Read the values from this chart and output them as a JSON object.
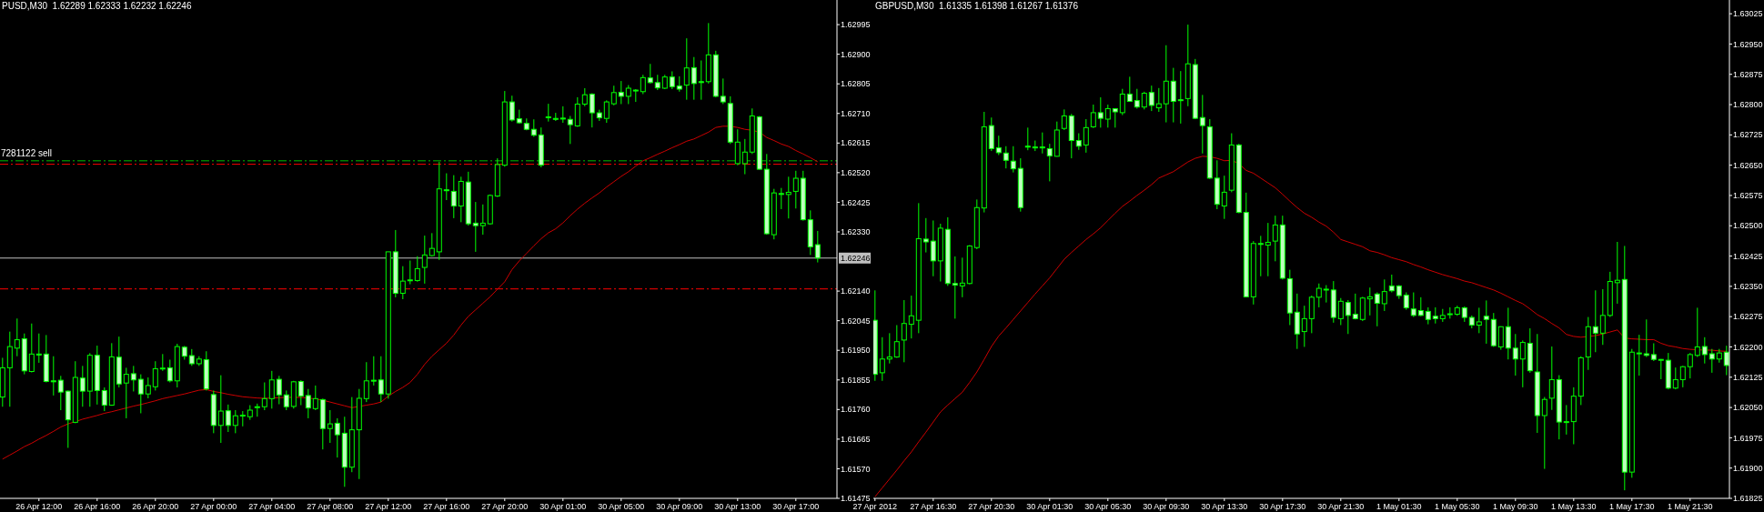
{
  "chart_data": [
    {
      "type": "candlestick",
      "title": "PUSD,M30  1.62289 1.62333 1.62232 1.62246",
      "color": "#00ff00",
      "grid": false,
      "ylim": [
        1.61475,
        1.63074
      ],
      "yticks": [
        1.62995,
        {
          "value": 1.629,
          "label": "1.62900"
        },
        1.62805,
        {
          "value": 1.6271,
          "label": "1.62710"
        },
        1.62615,
        {
          "value": 1.6252,
          "label": "1.62520"
        },
        1.62425,
        {
          "value": 1.6233,
          "label": "1.62330"
        },
        {
          "value": 1.6214,
          "label": "1.62140"
        },
        1.62045,
        {
          "value": 1.6195,
          "label": "1.61950"
        },
        1.61855,
        {
          "value": 1.6176,
          "label": "1.61760"
        },
        1.61665,
        {
          "value": 1.6157,
          "label": "1.61570"
        },
        1.61475
      ],
      "ref_lines": [
        {
          "axis": "y",
          "value": 1.62558,
          "label": "7281122 sell",
          "color": "#00c000",
          "line_style": "dashed"
        },
        {
          "axis": "y",
          "value": 1.62547,
          "color": "#ff0000",
          "line_style": "dashed"
        },
        {
          "axis": "y",
          "value": 1.62246,
          "label": "1.62246",
          "color": "#c0c0c0",
          "line_style": "solid"
        },
        {
          "axis": "y",
          "value": 1.62147,
          "color": "#ff0000",
          "line_style": "dashed"
        }
      ],
      "categories": [
        null,
        null,
        null,
        null,
        null,
        "26 Apr 12:00",
        null,
        null,
        null,
        null,
        null,
        null,
        null,
        "26 Apr 16:00",
        null,
        null,
        null,
        null,
        null,
        null,
        null,
        "26 Apr 20:00",
        null,
        null,
        null,
        null,
        null,
        null,
        null,
        "27 Apr 00:00",
        null,
        null,
        null,
        null,
        null,
        null,
        null,
        "27 Apr 04:00",
        null,
        null,
        null,
        null,
        null,
        null,
        null,
        "27 Apr 08:00",
        null,
        null,
        null,
        null,
        null,
        null,
        null,
        "27 Apr 12:00",
        null,
        null,
        null,
        null,
        null,
        null,
        null,
        "27 Apr 16:00",
        null,
        null,
        null,
        null,
        null,
        null,
        null,
        "27 Apr 20:00",
        null,
        null,
        null,
        null,
        null,
        null,
        null,
        "30 Apr 01:00",
        null,
        null,
        null,
        null,
        null,
        null,
        null,
        "30 Apr 05:00",
        null,
        null,
        null,
        null,
        null,
        null,
        null,
        "30 Apr 09:00",
        null,
        null,
        null,
        null,
        null,
        null,
        null,
        "30 Apr 13:00",
        null,
        null,
        null,
        null,
        null,
        null,
        null,
        "30 Apr 17:00",
        null,
        null,
        null
      ],
      "ohlc": [
        [
          1.618,
          1.61926,
          1.61769,
          1.61894
        ],
        [
          1.61894,
          1.6201,
          1.61769,
          1.61962
        ],
        [
          1.61957,
          1.62052,
          1.61931,
          1.61984
        ],
        [
          1.61987,
          1.62004,
          1.61873,
          1.61884
        ],
        [
          1.61882,
          1.62036,
          1.61879,
          1.61938
        ],
        [
          1.61938,
          1.62004,
          1.6191,
          1.61936
        ],
        [
          1.61938,
          1.61999,
          1.61847,
          1.6185
        ],
        [
          1.61852,
          1.61931,
          1.61805,
          1.61849
        ],
        [
          1.61854,
          1.61868,
          1.61758,
          1.61816
        ],
        [
          1.61819,
          1.61821,
          1.61637,
          1.61727
        ],
        [
          1.61719,
          1.61915,
          1.61716,
          1.61863
        ],
        [
          1.61861,
          1.619,
          1.61769,
          1.61819
        ],
        [
          1.61819,
          1.61941,
          1.61769,
          1.61934
        ],
        [
          1.61934,
          1.61965,
          1.61776,
          1.61821
        ],
        [
          1.61821,
          1.61831,
          1.61755,
          1.61774
        ],
        [
          1.61774,
          1.61973,
          1.61772,
          1.61929
        ],
        [
          1.61928,
          1.61994,
          1.61831,
          1.61842
        ],
        [
          1.61845,
          1.61894,
          1.61732,
          1.61873
        ],
        [
          1.61875,
          1.619,
          1.61818,
          1.61855
        ],
        [
          1.61857,
          1.61873,
          1.61748,
          1.6181
        ],
        [
          1.6181,
          1.61863,
          1.61796,
          1.61837
        ],
        [
          1.61833,
          1.61915,
          1.61821,
          1.61891
        ],
        [
          1.61891,
          1.61938,
          1.61884,
          1.61893
        ],
        [
          1.61894,
          1.6192,
          1.61847,
          1.61852
        ],
        [
          1.61852,
          1.61971,
          1.61831,
          1.61962
        ],
        [
          1.6196,
          1.61964,
          1.6192,
          1.61931
        ],
        [
          1.61933,
          1.61954,
          1.619,
          1.61907
        ],
        [
          1.61907,
          1.61931,
          1.619,
          1.61922
        ],
        [
          1.6192,
          1.61947,
          1.61821,
          1.61826
        ],
        [
          1.61808,
          1.61821,
          1.61684,
          1.61709
        ],
        [
          1.61709,
          1.6187,
          1.61653,
          1.61755
        ],
        [
          1.61756,
          1.61776,
          1.61688,
          1.61709
        ],
        [
          1.61709,
          1.61758,
          1.61684,
          1.6174
        ],
        [
          1.6174,
          1.61755,
          1.61706,
          1.61742
        ],
        [
          1.61737,
          1.61774,
          1.61727,
          1.61758
        ],
        [
          1.61766,
          1.61779,
          1.61737,
          1.61769
        ],
        [
          1.61769,
          1.61847,
          1.61758,
          1.61795
        ],
        [
          1.61795,
          1.61884,
          1.61763,
          1.61855
        ],
        [
          1.61857,
          1.61868,
          1.61777,
          1.61807
        ],
        [
          1.61807,
          1.61821,
          1.61758,
          1.61769
        ],
        [
          1.6177,
          1.61852,
          1.61763,
          1.61849
        ],
        [
          1.6185,
          1.61854,
          1.61774,
          1.61803
        ],
        [
          1.61805,
          1.61826,
          1.61732,
          1.61765
        ],
        [
          1.61763,
          1.61837,
          1.61758,
          1.61795
        ],
        [
          1.61792,
          1.61795,
          1.61632,
          1.61699
        ],
        [
          1.61699,
          1.61758,
          1.61653,
          1.61714
        ],
        [
          1.61716,
          1.61732,
          1.61606,
          1.61679
        ],
        [
          1.61684,
          1.61737,
          1.61512,
          1.61575
        ],
        [
          1.61575,
          1.618,
          1.61559,
          1.61695
        ],
        [
          1.61695,
          1.61826,
          1.61537,
          1.61796
        ],
        [
          1.61795,
          1.61912,
          1.61784,
          1.61852
        ],
        [
          1.61854,
          1.61931,
          1.61837,
          1.61852
        ],
        [
          1.61855,
          1.61931,
          1.61784,
          1.6181
        ],
        [
          1.6181,
          1.62266,
          1.61795,
          1.62266
        ],
        [
          1.62266,
          1.62336,
          1.6212,
          1.62133
        ],
        [
          1.62133,
          1.6222,
          1.62114,
          1.62172
        ],
        [
          1.62174,
          1.62238,
          1.62162,
          1.62176
        ],
        [
          1.62174,
          1.62252,
          1.6217,
          1.62212
        ],
        [
          1.62216,
          1.62318,
          1.62164,
          1.62256
        ],
        [
          1.62254,
          1.62326,
          1.62251,
          1.62277
        ],
        [
          1.62266,
          1.62555,
          1.6224,
          1.62468
        ],
        [
          1.62465,
          1.62518,
          1.62432,
          1.62463
        ],
        [
          1.6246,
          1.62512,
          1.62374,
          1.62413
        ],
        [
          1.62413,
          1.62507,
          1.62361,
          1.62492
        ],
        [
          1.6249,
          1.62523,
          1.6235,
          1.62356
        ],
        [
          1.62358,
          1.62426,
          1.62266,
          1.6235
        ],
        [
          1.6235,
          1.62418,
          1.62321,
          1.62358
        ],
        [
          1.62356,
          1.6245,
          1.62353,
          1.62447
        ],
        [
          1.62445,
          1.62566,
          1.62442,
          1.62546
        ],
        [
          1.62544,
          1.62782,
          1.62539,
          1.62747
        ],
        [
          1.62747,
          1.62767,
          1.62684,
          1.62689
        ],
        [
          1.62693,
          1.62722,
          1.62677,
          1.6268
        ],
        [
          1.62678,
          1.62694,
          1.62656,
          1.62659
        ],
        [
          1.62659,
          1.62691,
          1.62635,
          1.6264
        ],
        [
          1.62641,
          1.62665,
          1.62537,
          1.62544
        ],
        [
          1.62699,
          1.62741,
          1.62684,
          1.62697
        ],
        [
          1.62694,
          1.62712,
          1.62686,
          1.62692
        ],
        [
          1.62695,
          1.62733,
          1.6268,
          1.62693
        ],
        [
          1.62691,
          1.62702,
          1.62612,
          1.62674
        ],
        [
          1.6267,
          1.62762,
          1.62667,
          1.6274
        ],
        [
          1.6274,
          1.62791,
          1.62733,
          1.6277
        ],
        [
          1.62772,
          1.62775,
          1.62665,
          1.62712
        ],
        [
          1.62712,
          1.62722,
          1.62686,
          1.62696
        ],
        [
          1.62694,
          1.62752,
          1.6268,
          1.62747
        ],
        [
          1.62741,
          1.62799,
          1.62736,
          1.62777
        ],
        [
          1.62778,
          1.62814,
          1.6274,
          1.62765
        ],
        [
          1.62765,
          1.62801,
          1.6274,
          1.62791
        ],
        [
          1.62785,
          1.62788,
          1.62747,
          1.62783
        ],
        [
          1.6278,
          1.62834,
          1.62772,
          1.62825
        ],
        [
          1.62824,
          1.62869,
          1.62806,
          1.62809
        ],
        [
          1.62809,
          1.62834,
          1.62785,
          1.62792
        ],
        [
          1.62791,
          1.62834,
          1.62788,
          1.62827
        ],
        [
          1.62827,
          1.62845,
          1.62788,
          1.62796
        ],
        [
          1.62798,
          1.62829,
          1.6278,
          1.62788
        ],
        [
          1.62801,
          1.62951,
          1.62754,
          1.62856
        ],
        [
          1.62857,
          1.62891,
          1.62754,
          1.62806
        ],
        [
          1.62812,
          1.6288,
          1.62754,
          1.62809
        ],
        [
          1.62812,
          1.63,
          1.62806,
          1.62898
        ],
        [
          1.62898,
          1.62911,
          1.62762,
          1.62765
        ],
        [
          1.62765,
          1.62822,
          1.6274,
          1.62747
        ],
        [
          1.62742,
          1.62765,
          1.62612,
          1.62618
        ],
        [
          1.62549,
          1.62659,
          1.62544,
          1.62618
        ],
        [
          1.62549,
          1.62628,
          1.62515,
          1.62586
        ],
        [
          1.62586,
          1.62726,
          1.6258,
          1.62702
        ],
        [
          1.62699,
          1.62702,
          1.6253,
          1.62531
        ],
        [
          1.62531,
          1.6258,
          1.62321,
          1.62324
        ],
        [
          1.62321,
          1.62468,
          1.62306,
          1.62455
        ],
        [
          1.62453,
          1.62471,
          1.62403,
          1.62451
        ],
        [
          1.6245,
          1.62507,
          1.62373,
          1.62457
        ],
        [
          1.6246,
          1.62526,
          1.62405,
          1.62502
        ],
        [
          1.62502,
          1.62526,
          1.62366,
          1.62369
        ],
        [
          1.62369,
          1.62399,
          1.62256,
          1.62282
        ],
        [
          1.62289,
          1.62333,
          1.62232,
          1.62246
        ]
      ],
      "series": [
        {
          "type": "line",
          "color": "#cc0000",
          "marker": "none",
          "values": [
            1.61601,
            1.61614,
            1.61627,
            1.61641,
            1.61652,
            1.61665,
            1.61677,
            1.6169,
            1.61704,
            1.61714,
            1.61721,
            1.61729,
            1.61735,
            1.61741,
            1.61748,
            1.61753,
            1.61759,
            1.61765,
            1.61771,
            1.61776,
            1.61782,
            1.61788,
            1.61795,
            1.618,
            1.61805,
            1.6181,
            1.61816,
            1.61822,
            1.61824,
            1.61818,
            1.61814,
            1.61809,
            1.61805,
            1.61801,
            1.61799,
            1.61797,
            1.61796,
            1.61797,
            1.61798,
            1.61799,
            1.61799,
            1.61799,
            1.61797,
            1.61794,
            1.6179,
            1.61784,
            1.61778,
            1.61772,
            1.61766,
            1.6177,
            1.61774,
            1.61778,
            1.61784,
            1.61803,
            1.61818,
            1.61831,
            1.61847,
            1.61873,
            1.61905,
            1.61931,
            1.61952,
            1.61973,
            1.61999,
            1.62031,
            1.62059,
            1.6208,
            1.62101,
            1.62122,
            1.62146,
            1.6217,
            1.62209,
            1.62237,
            1.62261,
            1.62285,
            1.62308,
            1.62327,
            1.6234,
            1.62359,
            1.62382,
            1.62403,
            1.62422,
            1.62439,
            1.62455,
            1.62474,
            1.62491,
            1.62508,
            1.62523,
            1.62541,
            1.62558,
            1.62568,
            1.62579,
            1.62589,
            1.626,
            1.6261,
            1.62621,
            1.62628,
            1.62639,
            1.6265,
            1.62665,
            1.62669,
            1.62669,
            1.62665,
            1.62659,
            1.62656,
            1.6265,
            1.62633,
            1.62623,
            1.62612,
            1.62604,
            1.62591,
            1.6258,
            1.62568,
            1.62555
          ]
        }
      ]
    },
    {
      "type": "candlestick",
      "title": "GBPUSD,M30  1.61335 1.61398 1.61267 1.61376",
      "color": "#00ff00",
      "grid": false,
      "ylim": [
        1.61825,
        1.63059
      ],
      "yticks": [
        1.63025,
        {
          "value": 1.6295,
          "label": "1.62950"
        },
        1.62875,
        {
          "value": 1.628,
          "label": "1.62800"
        },
        1.62725,
        {
          "value": 1.6265,
          "label": "1.62650"
        },
        1.62575,
        {
          "value": 1.625,
          "label": "1.62500"
        },
        1.62425,
        {
          "value": 1.6235,
          "label": "1.62350"
        },
        1.62275,
        {
          "value": 1.622,
          "label": "1.62200"
        },
        1.62125,
        {
          "value": 1.6205,
          "label": "1.62050"
        },
        1.61975,
        {
          "value": 1.619,
          "label": "1.61900"
        },
        1.61825
      ],
      "categories": [
        "27 Apr 2012",
        null,
        null,
        null,
        null,
        null,
        null,
        null,
        "27 Apr 16:30",
        null,
        null,
        null,
        null,
        null,
        null,
        null,
        "27 Apr 20:30",
        null,
        null,
        null,
        null,
        null,
        null,
        null,
        "30 Apr 01:30",
        null,
        null,
        null,
        null,
        null,
        null,
        null,
        "30 Apr 05:30",
        null,
        null,
        null,
        null,
        null,
        null,
        null,
        "30 Apr 09:30",
        null,
        null,
        null,
        null,
        null,
        null,
        null,
        "30 Apr 13:30",
        null,
        null,
        null,
        null,
        null,
        null,
        null,
        "30 Apr 17:30",
        null,
        null,
        null,
        null,
        null,
        null,
        null,
        "30 Apr 21:30",
        null,
        null,
        null,
        null,
        null,
        null,
        null,
        "1 May 01:30",
        null,
        null,
        null,
        null,
        null,
        null,
        null,
        "1 May 05:30",
        null,
        null,
        null,
        null,
        null,
        null,
        null,
        "1 May 09:30",
        null,
        null,
        null,
        null,
        null,
        null,
        null,
        "1 May 13:30",
        null,
        null,
        null,
        null,
        null,
        null,
        null,
        "1 May 17:30",
        null,
        null,
        null,
        null,
        null,
        null,
        null,
        "1 May 21:30",
        null,
        null,
        null,
        null,
        null
      ],
      "ohlc": [
        [
          1.62266,
          1.6234,
          1.62116,
          1.62132
        ],
        [
          1.62136,
          1.62224,
          1.62116,
          1.6217
        ],
        [
          1.6217,
          1.62234,
          1.62159,
          1.62175
        ],
        [
          1.62175,
          1.62254,
          1.62173,
          1.62213
        ],
        [
          1.62217,
          1.62316,
          1.62162,
          1.62258
        ],
        [
          1.62256,
          1.62327,
          1.62221,
          1.62277
        ],
        [
          1.62266,
          1.62556,
          1.62234,
          1.62468
        ],
        [
          1.62467,
          1.62519,
          1.62434,
          1.6246
        ],
        [
          1.62462,
          1.62513,
          1.62375,
          1.62413
        ],
        [
          1.62413,
          1.62505,
          1.62362,
          1.62494
        ],
        [
          1.62491,
          1.62521,
          1.62351,
          1.62357
        ],
        [
          1.62357,
          1.62424,
          1.6227,
          1.62353
        ],
        [
          1.62351,
          1.62421,
          1.62323,
          1.62358
        ],
        [
          1.62357,
          1.62452,
          1.62355,
          1.6245
        ],
        [
          1.62446,
          1.62565,
          1.62442,
          1.62545
        ],
        [
          1.62544,
          1.62782,
          1.62533,
          1.62745
        ],
        [
          1.62748,
          1.62768,
          1.62685,
          1.62691
        ],
        [
          1.62693,
          1.62723,
          1.62675,
          1.62681
        ],
        [
          1.6268,
          1.62697,
          1.62642,
          1.62662
        ],
        [
          1.6266,
          1.62697,
          1.62632,
          1.62641
        ],
        [
          1.62642,
          1.62667,
          1.62535,
          1.62545
        ],
        [
          1.62697,
          1.62743,
          1.62687,
          1.62696
        ],
        [
          1.62695,
          1.62711,
          1.62685,
          1.62693
        ],
        [
          1.62695,
          1.62731,
          1.62679,
          1.62693
        ],
        [
          1.62691,
          1.62703,
          1.6261,
          1.62673
        ],
        [
          1.62672,
          1.62758,
          1.62671,
          1.62737
        ],
        [
          1.62741,
          1.62788,
          1.62737,
          1.62772
        ],
        [
          1.62772,
          1.62777,
          1.62667,
          1.62711
        ],
        [
          1.62711,
          1.62729,
          1.62688,
          1.62697
        ],
        [
          1.627,
          1.62764,
          1.62681,
          1.62743
        ],
        [
          1.62745,
          1.628,
          1.62742,
          1.6278
        ],
        [
          1.6278,
          1.62818,
          1.62743,
          1.62766
        ],
        [
          1.62764,
          1.628,
          1.62743,
          1.6279
        ],
        [
          1.6279,
          1.62791,
          1.62743,
          1.62782
        ],
        [
          1.6278,
          1.62839,
          1.62774,
          1.62826
        ],
        [
          1.62826,
          1.62869,
          1.62807,
          1.62808
        ],
        [
          1.6281,
          1.62839,
          1.6279,
          1.62794
        ],
        [
          1.62794,
          1.62832,
          1.62788,
          1.62828
        ],
        [
          1.6283,
          1.62847,
          1.62784,
          1.62798
        ],
        [
          1.62792,
          1.62841,
          1.62782,
          1.62802
        ],
        [
          1.62802,
          1.62947,
          1.62756,
          1.62858
        ],
        [
          1.62858,
          1.62891,
          1.62756,
          1.62808
        ],
        [
          1.62812,
          1.62883,
          1.62753,
          1.62811
        ],
        [
          1.62815,
          1.62998,
          1.62796,
          1.62901
        ],
        [
          1.62899,
          1.62913,
          1.62764,
          1.62766
        ],
        [
          1.62768,
          1.62824,
          1.62679,
          1.62748
        ],
        [
          1.62745,
          1.62764,
          1.62616,
          1.62618
        ],
        [
          1.62618,
          1.62662,
          1.62541,
          1.62553
        ],
        [
          1.62549,
          1.62624,
          1.62517,
          1.62583
        ],
        [
          1.62588,
          1.62729,
          1.62583,
          1.627
        ],
        [
          1.627,
          1.62703,
          1.62531,
          1.62533
        ],
        [
          1.62533,
          1.62582,
          1.62323,
          1.62324
        ],
        [
          1.62324,
          1.62462,
          1.62305,
          1.62456
        ],
        [
          1.62456,
          1.62475,
          1.62375,
          1.62455
        ],
        [
          1.62452,
          1.62507,
          1.62375,
          1.62459
        ],
        [
          1.62462,
          1.62525,
          1.62412,
          1.62502
        ],
        [
          1.62502,
          1.62525,
          1.62367,
          1.6237
        ],
        [
          1.62369,
          1.62391,
          1.62254,
          1.62284
        ],
        [
          1.62286,
          1.62332,
          1.62195,
          1.62232
        ],
        [
          1.62238,
          1.62302,
          1.622,
          1.6227
        ],
        [
          1.6227,
          1.62327,
          1.62234,
          1.62323
        ],
        [
          1.62323,
          1.62357,
          1.62298,
          1.62345
        ],
        [
          1.62341,
          1.62353,
          1.6231,
          1.62343
        ],
        [
          1.62341,
          1.62363,
          1.6226,
          1.62273
        ],
        [
          1.6227,
          1.62321,
          1.62254,
          1.62313
        ],
        [
          1.6231,
          1.62316,
          1.62232,
          1.62278
        ],
        [
          1.62281,
          1.62332,
          1.62268,
          1.6227
        ],
        [
          1.62268,
          1.62324,
          1.62264,
          1.62321
        ],
        [
          1.62319,
          1.62347,
          1.62278,
          1.62324
        ],
        [
          1.62331,
          1.62335,
          1.62251,
          1.62308
        ],
        [
          1.62307,
          1.62367,
          1.62289,
          1.62337
        ],
        [
          1.62351,
          1.62379,
          1.62335,
          1.62339
        ],
        [
          1.62351,
          1.62353,
          1.62319,
          1.62327
        ],
        [
          1.62328,
          1.62335,
          1.62292,
          1.62297
        ],
        [
          1.62294,
          1.62335,
          1.62274,
          1.62278
        ],
        [
          1.6229,
          1.62323,
          1.62276,
          1.62278
        ],
        [
          1.62288,
          1.62298,
          1.62256,
          1.62268
        ],
        [
          1.62276,
          1.62298,
          1.62258,
          1.6227
        ],
        [
          1.6227,
          1.62294,
          1.62262,
          1.62278
        ],
        [
          1.62281,
          1.62298,
          1.6227,
          1.62282
        ],
        [
          1.62281,
          1.62302,
          1.62277,
          1.62297
        ],
        [
          1.62297,
          1.623,
          1.62262,
          1.62273
        ],
        [
          1.62273,
          1.62278,
          1.62246,
          1.62254
        ],
        [
          1.62254,
          1.62297,
          1.62234,
          1.62262
        ],
        [
          1.62276,
          1.62315,
          1.62208,
          1.62268
        ],
        [
          1.62268,
          1.62284,
          1.622,
          1.62203
        ],
        [
          1.622,
          1.62251,
          1.62193,
          1.6225
        ],
        [
          1.6225,
          1.62297,
          1.62169,
          1.62197
        ],
        [
          1.62197,
          1.62232,
          1.62129,
          1.6217
        ],
        [
          1.6217,
          1.62216,
          1.621,
          1.62211
        ],
        [
          1.62209,
          1.62246,
          1.62136,
          1.62141
        ],
        [
          1.62138,
          1.62232,
          1.61987,
          1.6203
        ],
        [
          1.6203,
          1.62076,
          1.61898,
          1.6207
        ],
        [
          1.62073,
          1.62201,
          1.62044,
          1.62119
        ],
        [
          1.62119,
          1.6213,
          1.61971,
          1.62014
        ],
        [
          1.62014,
          1.62056,
          1.61983,
          1.62015
        ],
        [
          1.62015,
          1.621,
          1.61959,
          1.62078
        ],
        [
          1.62078,
          1.62177,
          1.62056,
          1.62173
        ],
        [
          1.62175,
          1.62274,
          1.62143,
          1.6225
        ],
        [
          1.6225,
          1.6234,
          1.62187,
          1.62234
        ],
        [
          1.62234,
          1.62343,
          1.62205,
          1.62278
        ],
        [
          1.62278,
          1.62386,
          1.62274,
          1.62362
        ],
        [
          1.62359,
          1.6246,
          1.62307,
          1.62365
        ],
        [
          1.62367,
          1.6245,
          1.61845,
          1.6189
        ],
        [
          1.6189,
          1.62195,
          1.61876,
          1.62187
        ],
        [
          1.62184,
          1.6223,
          1.62129,
          1.62185
        ],
        [
          1.62183,
          1.62268,
          1.62175,
          1.62179
        ],
        [
          1.62181,
          1.62209,
          1.62165,
          1.62169
        ],
        [
          1.62167,
          1.6217,
          1.6212,
          1.62169
        ],
        [
          1.62167,
          1.62185,
          1.62095,
          1.62098
        ],
        [
          1.62098,
          1.62149,
          1.62095,
          1.62119
        ],
        [
          1.62119,
          1.62153,
          1.621,
          1.62151
        ],
        [
          1.62151,
          1.62185,
          1.62122,
          1.62181
        ],
        [
          1.62179,
          1.62297,
          1.62175,
          1.622
        ],
        [
          1.62201,
          1.62224,
          1.62159,
          1.62181
        ],
        [
          1.62183,
          1.62195,
          1.62136,
          1.6217
        ],
        [
          1.6217,
          1.62195,
          1.62161,
          1.62185
        ],
        [
          1.62187,
          1.62203,
          1.6213,
          1.62154
        ]
      ],
      "series": [
        {
          "type": "line",
          "color": "#cc0000",
          "marker": "none",
          "values": [
            1.61829,
            1.61851,
            1.61873,
            1.61895,
            1.61918,
            1.6194,
            1.61965,
            1.61989,
            1.62014,
            1.62039,
            1.62056,
            1.62072,
            1.62088,
            1.62112,
            1.62138,
            1.62169,
            1.62201,
            1.62227,
            1.62247,
            1.62268,
            1.62289,
            1.6231,
            1.62331,
            1.62351,
            1.62371,
            1.62394,
            1.62417,
            1.62434,
            1.6245,
            1.62466,
            1.6248,
            1.62495,
            1.62513,
            1.62531,
            1.62548,
            1.62561,
            1.62575,
            1.62588,
            1.62602,
            1.62618,
            1.62626,
            1.62634,
            1.62646,
            1.62658,
            1.62667,
            1.62672,
            1.62671,
            1.62667,
            1.62661,
            1.62662,
            1.62654,
            1.62637,
            1.6263,
            1.62618,
            1.62606,
            1.62594,
            1.62578,
            1.62561,
            1.62545,
            1.62531,
            1.62521,
            1.62509,
            1.62499,
            1.62484,
            1.62466,
            1.6246,
            1.62454,
            1.62448,
            1.62438,
            1.62434,
            1.62428,
            1.62421,
            1.62416,
            1.62411,
            1.62404,
            1.62398,
            1.62391,
            1.62385,
            1.62379,
            1.62374,
            1.62369,
            1.62363,
            1.62359,
            1.62353,
            1.62347,
            1.62341,
            1.62333,
            1.62324,
            1.62315,
            1.62307,
            1.62294,
            1.6228,
            1.6227,
            1.62258,
            1.62247,
            1.62231,
            1.62226,
            1.62224,
            1.62226,
            1.62228,
            1.62232,
            1.62237,
            1.62242,
            1.62222,
            1.6222,
            1.62219,
            1.62218,
            1.62218,
            1.62209,
            1.62203,
            1.622,
            1.62196,
            1.62194,
            1.62193,
            1.62192,
            1.62192,
            1.6219,
            1.62189
          ]
        }
      ]
    }
  ]
}
